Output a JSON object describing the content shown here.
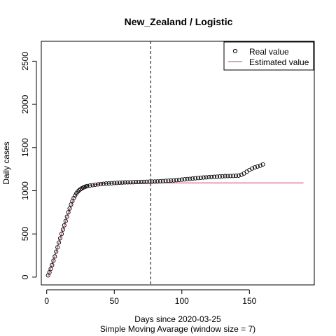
{
  "chart_data": {
    "type": "scatter",
    "title": "New_Zealand / Logistic",
    "xlabel": "Days since 2020-03-25",
    "xlabel_sub": "Simple Moving Avarage (window size = 7)",
    "ylabel": "Daily cases",
    "xlim": [
      -4,
      198
    ],
    "ylim": [
      -90,
      2730
    ],
    "x_ticks": [
      0,
      50,
      100,
      150
    ],
    "y_ticks": [
      0,
      500,
      1000,
      1500,
      2000,
      2500
    ],
    "vline": {
      "x": 77,
      "style": "dashed"
    },
    "legend": {
      "position": "top-right",
      "entries": [
        {
          "label": "Real value",
          "symbol": "open-circle"
        },
        {
          "label": "Estimated value",
          "symbol": "line"
        }
      ]
    },
    "series": [
      {
        "name": "Real value",
        "style": "open-circle",
        "points": [
          [
            1,
            20
          ],
          [
            2,
            55
          ],
          [
            3,
            95
          ],
          [
            4,
            140
          ],
          [
            5,
            190
          ],
          [
            6,
            240
          ],
          [
            7,
            295
          ],
          [
            8,
            345
          ],
          [
            9,
            400
          ],
          [
            10,
            450
          ],
          [
            11,
            500
          ],
          [
            12,
            550
          ],
          [
            13,
            600
          ],
          [
            14,
            650
          ],
          [
            15,
            700
          ],
          [
            16,
            750
          ],
          [
            17,
            795
          ],
          [
            18,
            840
          ],
          [
            19,
            880
          ],
          [
            20,
            915
          ],
          [
            21,
            945
          ],
          [
            22,
            970
          ],
          [
            23,
            990
          ],
          [
            24,
            1005
          ],
          [
            25,
            1018
          ],
          [
            26,
            1028
          ],
          [
            27,
            1036
          ],
          [
            28,
            1043
          ],
          [
            29,
            1049
          ],
          [
            30,
            1054
          ],
          [
            32,
            1060
          ],
          [
            34,
            1065
          ],
          [
            36,
            1070
          ],
          [
            38,
            1074
          ],
          [
            40,
            1077
          ],
          [
            42,
            1080
          ],
          [
            44,
            1083
          ],
          [
            46,
            1085
          ],
          [
            48,
            1087
          ],
          [
            50,
            1089
          ],
          [
            52,
            1091
          ],
          [
            54,
            1093
          ],
          [
            56,
            1095
          ],
          [
            58,
            1096
          ],
          [
            60,
            1097
          ],
          [
            62,
            1098
          ],
          [
            64,
            1099
          ],
          [
            66,
            1100
          ],
          [
            68,
            1101
          ],
          [
            70,
            1102
          ],
          [
            72,
            1103
          ],
          [
            74,
            1104
          ],
          [
            76,
            1105
          ],
          [
            78,
            1106
          ],
          [
            80,
            1107
          ],
          [
            82,
            1108
          ],
          [
            84,
            1110
          ],
          [
            86,
            1112
          ],
          [
            88,
            1114
          ],
          [
            90,
            1116
          ],
          [
            92,
            1118
          ],
          [
            94,
            1120
          ],
          [
            96,
            1123
          ],
          [
            98,
            1126
          ],
          [
            100,
            1129
          ],
          [
            102,
            1132
          ],
          [
            104,
            1135
          ],
          [
            106,
            1138
          ],
          [
            108,
            1141
          ],
          [
            110,
            1144
          ],
          [
            112,
            1147
          ],
          [
            114,
            1150
          ],
          [
            116,
            1153
          ],
          [
            118,
            1155
          ],
          [
            120,
            1157
          ],
          [
            122,
            1159
          ],
          [
            124,
            1161
          ],
          [
            126,
            1163
          ],
          [
            128,
            1165
          ],
          [
            130,
            1167
          ],
          [
            132,
            1169
          ],
          [
            134,
            1170
          ],
          [
            136,
            1171
          ],
          [
            138,
            1172
          ],
          [
            140,
            1173
          ],
          [
            142,
            1175
          ],
          [
            144,
            1185
          ],
          [
            146,
            1200
          ],
          [
            148,
            1220
          ],
          [
            150,
            1240
          ],
          [
            152,
            1258
          ],
          [
            154,
            1270
          ],
          [
            156,
            1280
          ],
          [
            158,
            1290
          ],
          [
            160,
            1305
          ]
        ]
      },
      {
        "name": "Estimated value",
        "style": "line",
        "color": "#c0466c",
        "points": [
          [
            1,
            15
          ],
          [
            5,
            190
          ],
          [
            10,
            450
          ],
          [
            15,
            700
          ],
          [
            20,
            915
          ],
          [
            25,
            1020
          ],
          [
            30,
            1058
          ],
          [
            40,
            1080
          ],
          [
            50,
            1088
          ],
          [
            60,
            1090
          ],
          [
            80,
            1091
          ],
          [
            100,
            1091
          ],
          [
            150,
            1091
          ],
          [
            190,
            1091
          ]
        ]
      }
    ]
  }
}
